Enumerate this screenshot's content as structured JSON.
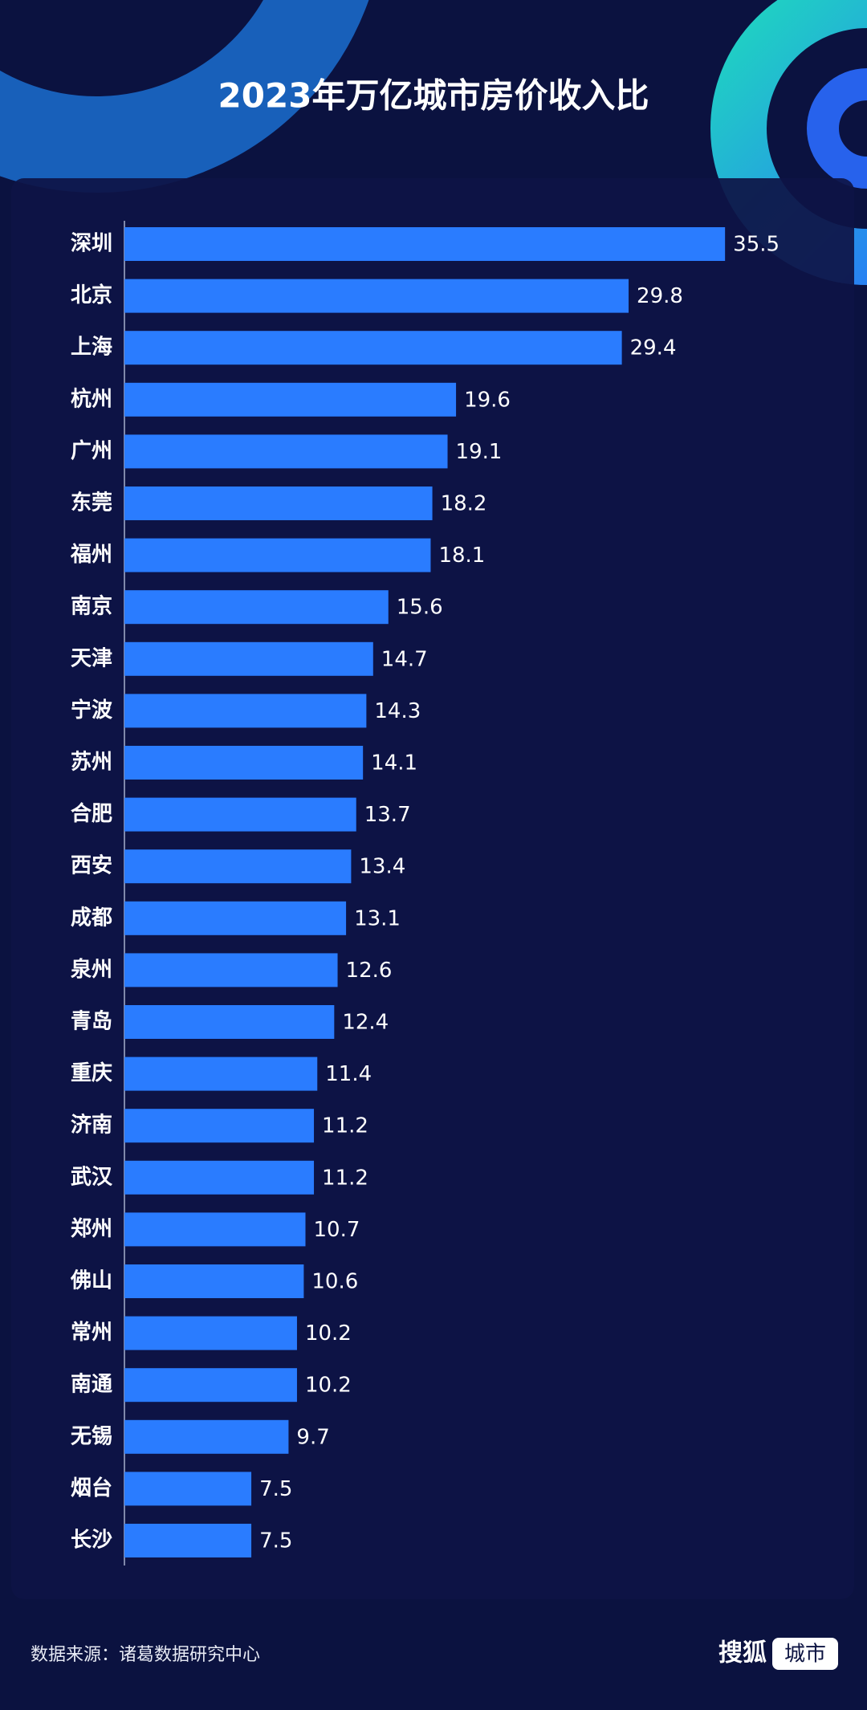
{
  "chart_data": {
    "type": "hbar",
    "title": "2023年万亿城市房价收入比",
    "categories": [
      "深圳",
      "北京",
      "上海",
      "杭州",
      "广州",
      "东莞",
      "福州",
      "南京",
      "天津",
      "宁波",
      "苏州",
      "合肥",
      "西安",
      "成都",
      "泉州",
      "青岛",
      "重庆",
      "济南",
      "武汉",
      "郑州",
      "佛山",
      "常州",
      "南通",
      "无锡",
      "烟台",
      "长沙"
    ],
    "values": [
      35.5,
      29.8,
      29.4,
      19.6,
      19.1,
      18.2,
      18.1,
      15.6,
      14.7,
      14.3,
      14.1,
      13.7,
      13.4,
      13.1,
      12.6,
      12.4,
      11.4,
      11.2,
      11.2,
      10.7,
      10.6,
      10.2,
      10.2,
      9.7,
      7.5,
      7.5
    ],
    "color": "#2a7cff",
    "xlim": [
      0,
      40
    ],
    "source": "数据来源：诸葛数据研究中心"
  },
  "logo": {
    "name": "搜狐",
    "tag": "城市"
  }
}
